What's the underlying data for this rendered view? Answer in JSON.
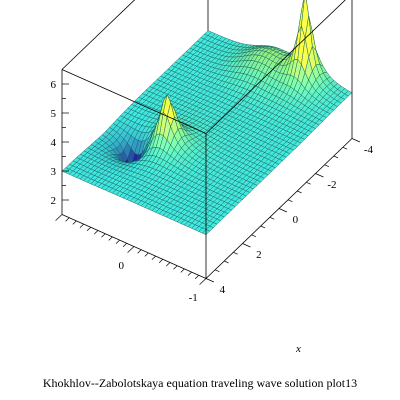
{
  "chart_data": {
    "type": "surface3d",
    "caption": "Khokhlov--Zabolotskaya equation traveling wave solution plot13",
    "x_axis": {
      "label": "x",
      "ticks": [
        "-4",
        "-2",
        "0",
        "2",
        "4"
      ],
      "range": [
        -4,
        4
      ]
    },
    "y_axis": {
      "label": "",
      "ticks": [
        "-1",
        "0"
      ],
      "range": [
        -1,
        1
      ]
    },
    "z_axis": {
      "label": "",
      "ticks": [
        "2",
        "3",
        "4",
        "5",
        "6"
      ],
      "range": [
        1.5,
        6.5
      ]
    },
    "baseline_value": 3,
    "features": [
      {
        "name": "primary-peak",
        "x": -3.6,
        "y": -0.45,
        "z_max": 6.1
      },
      {
        "name": "secondary-peak",
        "x": 1.2,
        "y": 0.25,
        "z_max": 4.9
      },
      {
        "name": "trough",
        "x": 1.7,
        "y": 0.6,
        "z_min": 1.6
      }
    ],
    "colors": {
      "plateau": "#3fe8e0",
      "mesh": "#1a5f5c",
      "peak": "#c9ef3a",
      "valley": "#1a237e",
      "box": "#000000"
    }
  }
}
